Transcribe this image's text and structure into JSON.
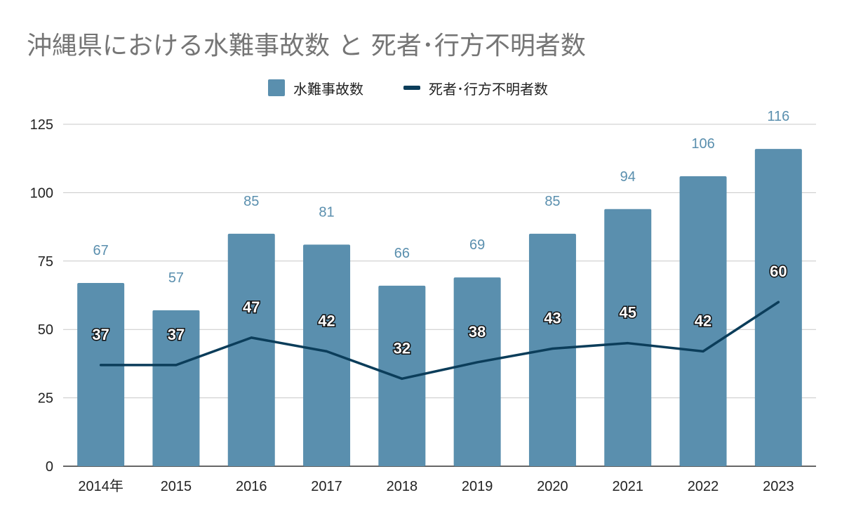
{
  "chart_data": {
    "type": "bar",
    "title": "沖縄県における水難事故数 と 死者･行方不明者数",
    "categories": [
      "2014年",
      "2015",
      "2016",
      "2017",
      "2018",
      "2019",
      "2020",
      "2021",
      "2022",
      "2023"
    ],
    "series": [
      {
        "name": "水難事故数",
        "kind": "bar",
        "color": "#5a8fae",
        "values": [
          67,
          57,
          85,
          81,
          66,
          69,
          85,
          94,
          106,
          116
        ]
      },
      {
        "name": "死者･行方不明者数",
        "kind": "line",
        "color": "#0b3d5a",
        "values": [
          37,
          37,
          47,
          42,
          32,
          38,
          43,
          45,
          42,
          60
        ]
      }
    ],
    "ylim": [
      0,
      125
    ],
    "yticks": [
      0,
      25,
      50,
      75,
      100,
      125
    ],
    "grid": true,
    "legend_position": "top-center"
  }
}
